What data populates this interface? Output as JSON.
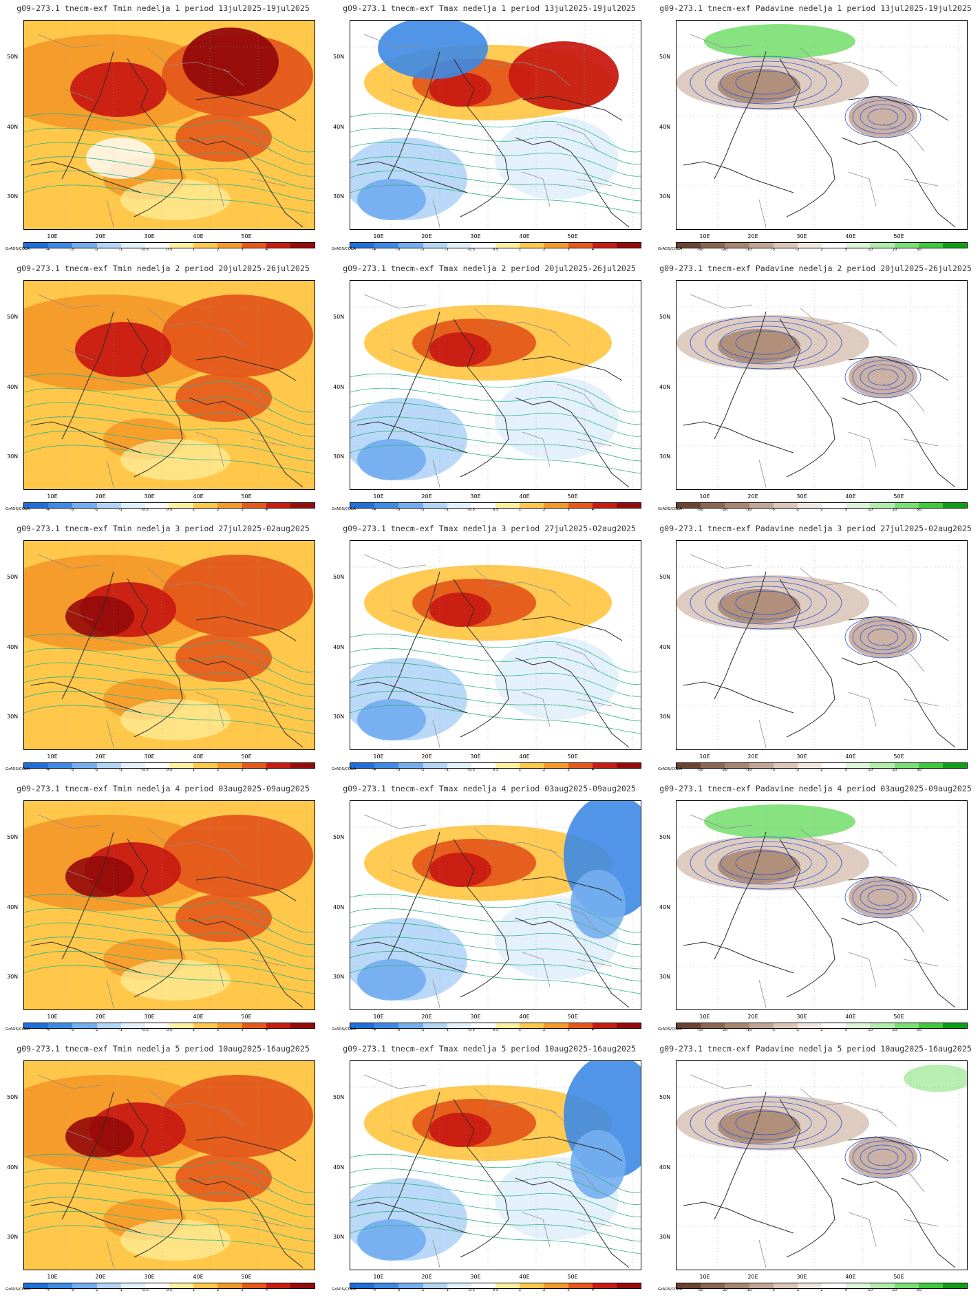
{
  "brand": "GrADS/COLA",
  "y_ticks": [
    "50N",
    "40N",
    "30N"
  ],
  "x_ticks": [
    "10E",
    "20E",
    "30E",
    "40E",
    "50E"
  ],
  "legends": {
    "temp": {
      "labels": [
        "-4",
        "-3",
        "-2",
        "-1",
        "-0.5",
        "0.5",
        "1",
        "2",
        "3",
        "4"
      ],
      "colors": [
        "#1e6fd9",
        "#3d8ae6",
        "#74aef0",
        "#b2d5f7",
        "#e1f0fb",
        "#ffffff",
        "#fff0a0",
        "#ffc84a",
        "#f59a28",
        "#e5581a",
        "#c81b12",
        "#950a0a"
      ]
    },
    "precip": {
      "labels": [
        "-50",
        "-20",
        "-10",
        "-5",
        "-2",
        "2",
        "5",
        "10",
        "20",
        "50"
      ],
      "colors": [
        "#6b4232",
        "#8c6550",
        "#a8856e",
        "#c2a595",
        "#dcc6b9",
        "#f1e7e1",
        "#ffffff",
        "#ddf6d9",
        "#b1ecaa",
        "#7adf72",
        "#3fc83b",
        "#0d9e15"
      ]
    }
  },
  "panels": [
    {
      "title": "g09-273.1 tnecm-exf Tmin nedelja 1 period 13jul2025-19jul2025",
      "kind": "tmin",
      "week": 1
    },
    {
      "title": "g09-273.1 tnecm-exf Tmax nedelja 1 period 13jul2025-19jul2025",
      "kind": "tmax",
      "week": 1
    },
    {
      "title": "g09-273.1 tnecm-exf Padavine nedelja 1 period 13jul2025-19jul2025",
      "kind": "precip",
      "week": 1
    },
    {
      "title": "g09-273.1 tnecm-exf Tmin nedelja 2 period 20jul2025-26jul2025",
      "kind": "tmin",
      "week": 2
    },
    {
      "title": "g09-273.1 tnecm-exf Tmax nedelja 2 period 20jul2025-26jul2025",
      "kind": "tmax",
      "week": 2
    },
    {
      "title": "g09-273.1 tnecm-exf Padavine nedelja 2 period 20jul2025-26jul2025",
      "kind": "precip",
      "week": 2
    },
    {
      "title": "g09-273.1 tnecm-exf Tmin nedelja 3 period 27jul2025-02aug2025",
      "kind": "tmin",
      "week": 3
    },
    {
      "title": "g09-273.1 tnecm-exf Tmax nedelja 3 period 27jul2025-02aug2025",
      "kind": "tmax",
      "week": 3
    },
    {
      "title": "g09-273.1 tnecm-exf Padavine nedelja 3 period 27jul2025-02aug2025",
      "kind": "precip",
      "week": 3
    },
    {
      "title": "g09-273.1 tnecm-exf Tmin nedelja 4 period 03aug2025-09aug2025",
      "kind": "tmin",
      "week": 4
    },
    {
      "title": "g09-273.1 tnecm-exf Tmax nedelja 4 period 03aug2025-09aug2025",
      "kind": "tmax",
      "week": 4
    },
    {
      "title": "g09-273.1 tnecm-exf Padavine nedelja 4 period 03aug2025-09aug2025",
      "kind": "precip",
      "week": 4
    },
    {
      "title": "g09-273.1 tnecm-exf Tmin nedelja 5 period 10aug2025-16aug2025",
      "kind": "tmin",
      "week": 5
    },
    {
      "title": "g09-273.1 tnecm-exf Tmax nedelja 5 period 10aug2025-16aug2025",
      "kind": "tmax",
      "week": 5
    },
    {
      "title": "g09-273.1 tnecm-exf Padavine nedelja 5 period 10aug2025-16aug2025",
      "kind": "precip",
      "week": 5
    }
  ]
}
